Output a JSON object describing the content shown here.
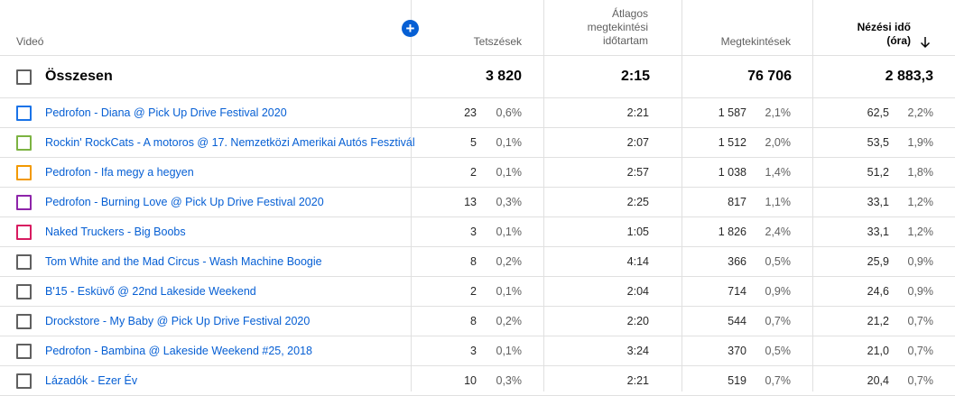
{
  "header": {
    "video": "Videó",
    "likes": "Tetszések",
    "avg_line1": "Átlagos",
    "avg_line2": "megtekintési",
    "avg_line3": "időtartam",
    "views": "Megtekintések",
    "watch_line1": "Nézési idő",
    "watch_line2": "(óra)",
    "add_column_icon": "plus-circle-icon",
    "sort_icon": "arrow-down-icon"
  },
  "total": {
    "label": "Összesen",
    "likes": "3 820",
    "avg_duration": "2:15",
    "views": "76 706",
    "watch_time": "2 883,3"
  },
  "rows": [
    {
      "title": "Pedrofon - Diana @ Pick Up Drive Festival 2020",
      "color": "#1a73e8",
      "likes": "23",
      "likes_pct": "0,6%",
      "avg": "2:21",
      "views": "1 587",
      "views_pct": "2,1%",
      "watch": "62,5",
      "watch_pct": "2,2%"
    },
    {
      "title": "Rockin' RockCats - A motoros @ 17. Nemzetközi Amerikai Autós Fesztivál",
      "color": "#7cb342",
      "likes": "5",
      "likes_pct": "0,1%",
      "avg": "2:07",
      "views": "1 512",
      "views_pct": "2,0%",
      "watch": "53,5",
      "watch_pct": "1,9%"
    },
    {
      "title": "Pedrofon - Ifa megy a hegyen",
      "color": "#f29900",
      "likes": "2",
      "likes_pct": "0,1%",
      "avg": "2:57",
      "views": "1 038",
      "views_pct": "1,4%",
      "watch": "51,2",
      "watch_pct": "1,8%"
    },
    {
      "title": "Pedrofon - Burning Love @ Pick Up Drive Festival 2020",
      "color": "#8e24aa",
      "likes": "13",
      "likes_pct": "0,3%",
      "avg": "2:25",
      "views": "817",
      "views_pct": "1,1%",
      "watch": "33,1",
      "watch_pct": "1,2%"
    },
    {
      "title": "Naked Truckers - Big Boobs",
      "color": "#d81b60",
      "likes": "3",
      "likes_pct": "0,1%",
      "avg": "1:05",
      "views": "1 826",
      "views_pct": "2,4%",
      "watch": "33,1",
      "watch_pct": "1,2%"
    },
    {
      "title": "Tom White and the Mad Circus - Wash Machine Boogie",
      "color": "#606060",
      "likes": "8",
      "likes_pct": "0,2%",
      "avg": "4:14",
      "views": "366",
      "views_pct": "0,5%",
      "watch": "25,9",
      "watch_pct": "0,9%"
    },
    {
      "title": "B'15 - Esküvő @ 22nd Lakeside Weekend",
      "color": "#606060",
      "likes": "2",
      "likes_pct": "0,1%",
      "avg": "2:04",
      "views": "714",
      "views_pct": "0,9%",
      "watch": "24,6",
      "watch_pct": "0,9%"
    },
    {
      "title": "Drockstore - My Baby @ Pick Up Drive Festival 2020",
      "color": "#606060",
      "likes": "8",
      "likes_pct": "0,2%",
      "avg": "2:20",
      "views": "544",
      "views_pct": "0,7%",
      "watch": "21,2",
      "watch_pct": "0,7%"
    },
    {
      "title": "Pedrofon - Bambina @ Lakeside Weekend #25, 2018",
      "color": "#606060",
      "likes": "3",
      "likes_pct": "0,1%",
      "avg": "3:24",
      "views": "370",
      "views_pct": "0,5%",
      "watch": "21,0",
      "watch_pct": "0,7%"
    },
    {
      "title": "Lázadók - Ezer Év",
      "color": "#606060",
      "likes": "10",
      "likes_pct": "0,3%",
      "avg": "2:21",
      "views": "519",
      "views_pct": "0,7%",
      "watch": "20,4",
      "watch_pct": "0,7%"
    }
  ]
}
